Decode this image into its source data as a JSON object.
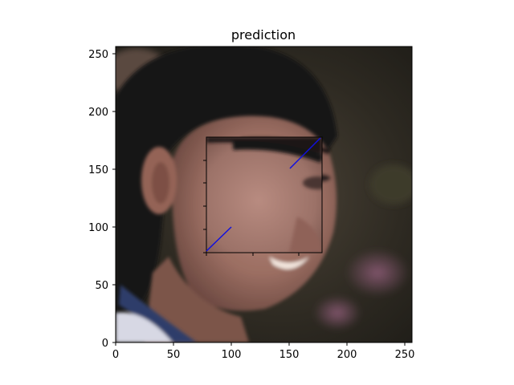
{
  "title": "prediction",
  "x_ticks": [
    "0",
    "50",
    "100",
    "150",
    "200",
    "250"
  ],
  "y_ticks": [
    "0",
    "50",
    "100",
    "150",
    "200",
    "250"
  ],
  "chart_data": {
    "type": "image-with-inset",
    "title": "prediction",
    "xlim": [
      0,
      256
    ],
    "ylim": [
      0,
      256
    ],
    "xticks": [
      0,
      50,
      100,
      150,
      200,
      250
    ],
    "yticks": [
      0,
      50,
      100,
      150,
      200,
      250
    ],
    "image_subject": "close-up photo of a smiling woman with dark hair",
    "inset": {
      "region_x": [
        78,
        178
      ],
      "region_y": [
        78,
        178
      ],
      "connector_lines_color": "#0000ff"
    }
  }
}
